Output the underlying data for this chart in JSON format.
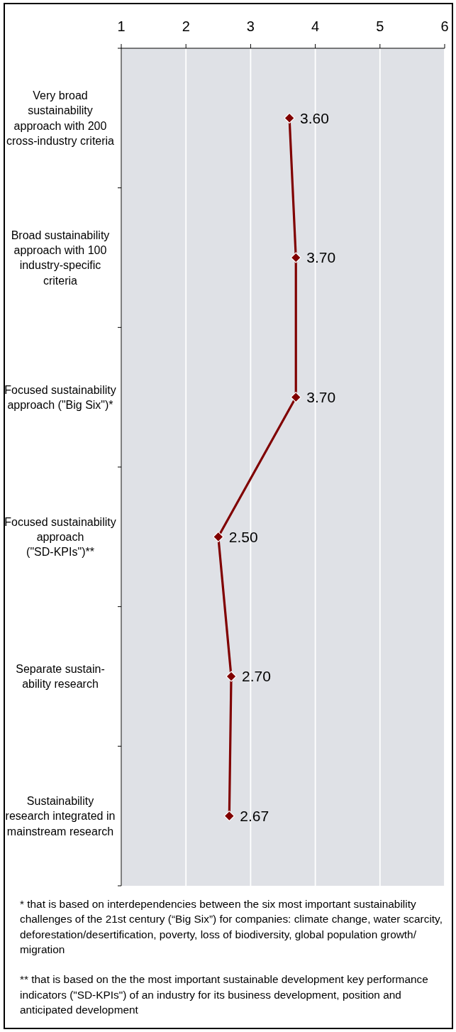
{
  "chart_data": {
    "type": "line",
    "orientation": "horizontal",
    "categories": [
      "Very broad\nsustainability\napproach with 200\ncross-industry criteria",
      "Broad sustainability\napproach with 100\nindustry-specific\ncriteria",
      "Focused sustainability\napproach (\"Big Six\")*",
      "Focused sustainability\napproach\n(\"SD-KPIs\")**",
      "Separate sustain-\nability research",
      "Sustainability\nresearch integrated in\nmainstream research"
    ],
    "values": [
      3.6,
      3.7,
      3.7,
      2.5,
      2.7,
      2.67
    ],
    "value_labels": [
      "3.60",
      "3.70",
      "3.70",
      "2.50",
      "2.70",
      "2.67"
    ],
    "color": "#800000",
    "xlim": [
      1,
      6
    ],
    "xticks": [
      1,
      2,
      3,
      4,
      5,
      6
    ],
    "grid": "x",
    "marker": "diamond",
    "annotations": [
      "* that is based on interdependencies between the six most important sustainability challenges of the 21st century (“Big Six”) for companies: climate change, water scarcity, deforestation/desertification, poverty, loss of biodiversity, global population growth/migration",
      "** that is based on the the most important sustainable development key performance indicators (\"SD-KPIs\") of an industry for its business development, position and anticipated development"
    ]
  }
}
